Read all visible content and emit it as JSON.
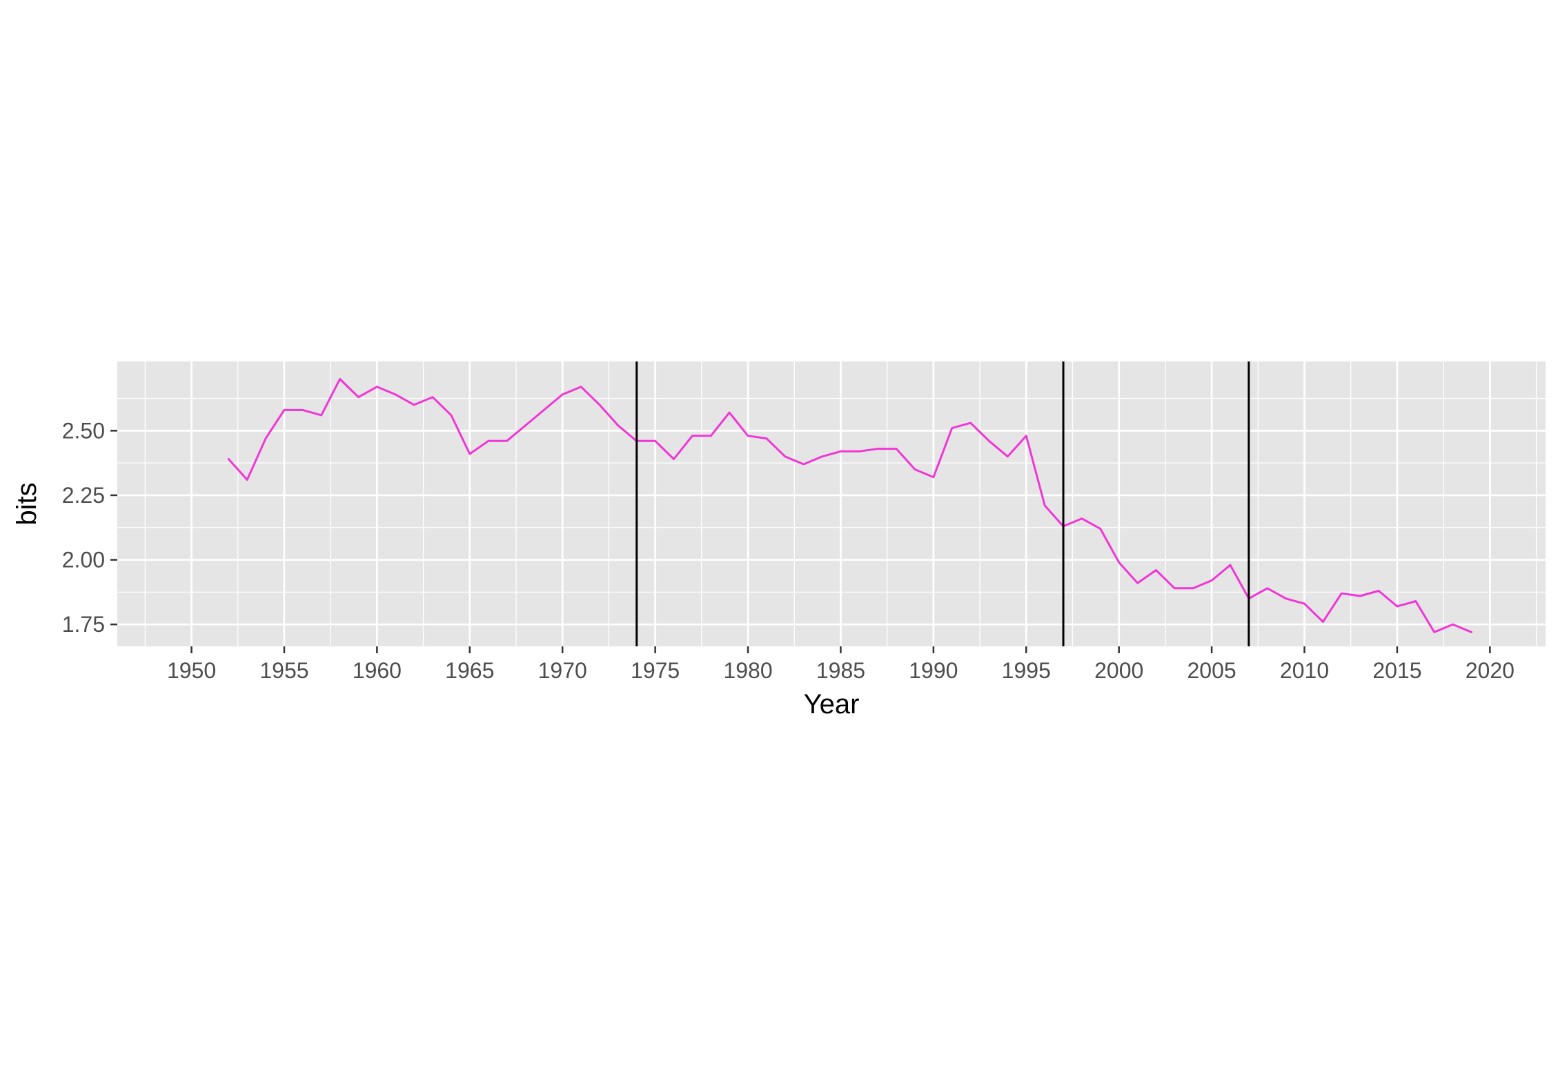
{
  "chart_data": {
    "type": "line",
    "xlabel": "Year",
    "ylabel": "bits",
    "xlim": [
      1946,
      2023
    ],
    "ylim": [
      1.665,
      2.768
    ],
    "x_ticks": [
      1950,
      1955,
      1960,
      1965,
      1970,
      1975,
      1980,
      1985,
      1990,
      1995,
      2000,
      2005,
      2010,
      2015,
      2020
    ],
    "x_tick_labels": [
      "1950",
      "1955",
      "1960",
      "1965",
      "1970",
      "1975",
      "1980",
      "1985",
      "1990",
      "1995",
      "2000",
      "2005",
      "2010",
      "2015",
      "2020"
    ],
    "y_ticks": [
      1.75,
      2.0,
      2.25,
      2.5
    ],
    "y_tick_labels": [
      "1.75",
      "2.00",
      "2.25",
      "2.50"
    ],
    "grid": true,
    "background": "#e5e5e5",
    "vertical_lines": [
      1974,
      1997,
      2007
    ],
    "vertical_line_color": "#000000",
    "series": [
      {
        "color": "#f037d6",
        "x": [
          1952,
          1953,
          1954,
          1955,
          1956,
          1957,
          1958,
          1959,
          1960,
          1961,
          1962,
          1963,
          1964,
          1965,
          1966,
          1967,
          1968,
          1969,
          1970,
          1971,
          1972,
          1973,
          1974,
          1975,
          1976,
          1977,
          1978,
          1979,
          1980,
          1981,
          1982,
          1983,
          1984,
          1985,
          1986,
          1987,
          1988,
          1989,
          1990,
          1991,
          1992,
          1993,
          1994,
          1995,
          1996,
          1997,
          1998,
          1999,
          2000,
          2001,
          2002,
          2003,
          2004,
          2005,
          2006,
          2007,
          2008,
          2009,
          2010,
          2011,
          2012,
          2013,
          2014,
          2015,
          2016,
          2017,
          2018,
          2019
        ],
        "y": [
          2.39,
          2.31,
          2.47,
          2.58,
          2.58,
          2.56,
          2.7,
          2.63,
          2.67,
          2.64,
          2.6,
          2.63,
          2.56,
          2.41,
          2.46,
          2.46,
          2.52,
          2.58,
          2.64,
          2.67,
          2.6,
          2.52,
          2.46,
          2.46,
          2.39,
          2.48,
          2.48,
          2.57,
          2.48,
          2.47,
          2.4,
          2.37,
          2.4,
          2.42,
          2.42,
          2.43,
          2.43,
          2.35,
          2.32,
          2.51,
          2.53,
          2.46,
          2.4,
          2.48,
          2.21,
          2.13,
          2.16,
          2.12,
          1.99,
          1.91,
          1.96,
          1.89,
          1.89,
          1.92,
          1.98,
          1.85,
          1.89,
          1.85,
          1.83,
          1.76,
          1.87,
          1.86,
          1.88,
          1.82,
          1.84,
          1.72,
          1.75,
          1.72
        ]
      }
    ]
  }
}
